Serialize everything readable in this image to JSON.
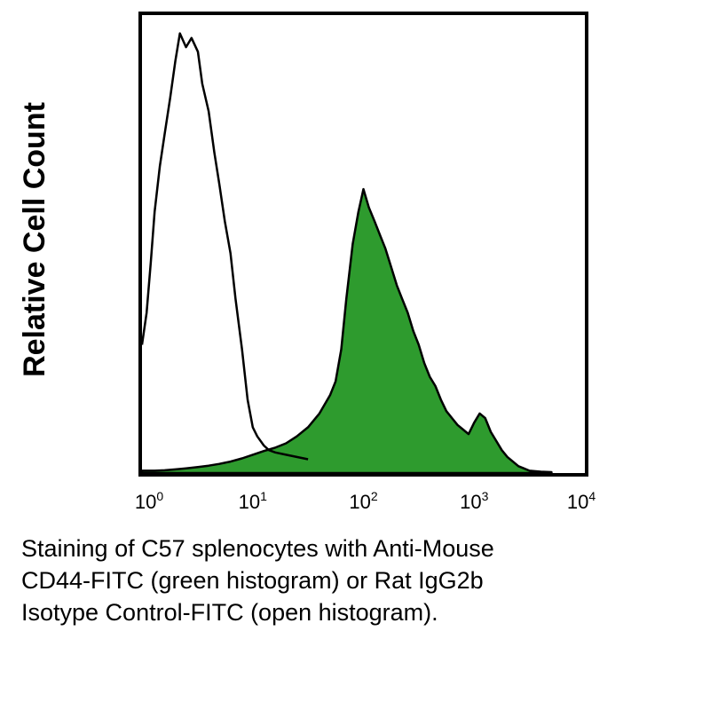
{
  "chart_data": {
    "type": "area",
    "title": "",
    "ylabel": "Relative Cell Count",
    "xlabel": "",
    "x_scale": "log",
    "xlim": [
      1,
      10000
    ],
    "ylim": [
      0,
      100
    ],
    "grid": false,
    "x_ticks": [
      {
        "base": "10",
        "exp": "0",
        "value": 1
      },
      {
        "base": "10",
        "exp": "1",
        "value": 10
      },
      {
        "base": "10",
        "exp": "2",
        "value": 100
      },
      {
        "base": "10",
        "exp": "3",
        "value": 1000
      },
      {
        "base": "10",
        "exp": "4",
        "value": 10000
      }
    ],
    "series": [
      {
        "name": "green histogram",
        "style": "filled",
        "color": "#2e9b2e",
        "x": [
          1,
          1.3,
          1.6,
          2,
          2.5,
          3.2,
          4,
          5,
          6.3,
          8,
          10,
          12.6,
          15.8,
          20,
          25,
          31.6,
          40,
          50,
          56,
          63,
          70,
          80,
          90,
          100,
          112,
          126,
          141,
          158,
          178,
          200,
          224,
          251,
          282,
          316,
          355,
          398,
          447,
          501,
          562,
          631,
          708,
          794,
          891,
          1000,
          1122,
          1259,
          1413,
          1585,
          1778,
          1995,
          2239,
          2512,
          2818,
          3162,
          4000,
          5000
        ],
        "y": [
          0.5,
          0.5,
          0.6,
          0.8,
          1,
          1.3,
          1.6,
          2,
          2.5,
          3.2,
          4,
          4.8,
          5.5,
          6.5,
          8,
          10,
          13,
          17,
          20,
          27,
          38,
          50,
          57,
          62,
          58,
          55,
          52,
          49,
          45,
          41,
          38,
          35,
          31,
          28,
          24,
          21,
          19,
          16,
          13.5,
          12,
          10.5,
          9.5,
          8.5,
          11,
          13,
          12,
          9,
          7,
          5,
          3.5,
          2.5,
          1.5,
          1,
          0.5,
          0.3,
          0.2
        ]
      },
      {
        "name": "open histogram",
        "style": "outline",
        "color": "#000000",
        "x": [
          1,
          1.1,
          1.2,
          1.3,
          1.45,
          1.6,
          1.8,
          2,
          2.2,
          2.5,
          2.8,
          3.2,
          3.5,
          4,
          4.5,
          5,
          5.6,
          6.3,
          7,
          8,
          9,
          10,
          11,
          12.6,
          14,
          16,
          20,
          25,
          31.6
        ],
        "y": [
          28,
          35,
          46,
          57,
          67,
          74,
          82,
          90,
          96,
          93,
          95,
          92,
          85,
          79,
          70,
          63,
          55,
          48,
          38,
          27,
          16,
          10,
          8,
          6,
          5,
          4.5,
          4,
          3.5,
          3
        ]
      }
    ]
  },
  "caption": {
    "lines": [
      "Staining of C57 splenocytes with Anti-Mouse",
      "CD44-FITC (green histogram) or Rat IgG2b",
      "Isotype Control-FITC (open histogram)."
    ]
  }
}
